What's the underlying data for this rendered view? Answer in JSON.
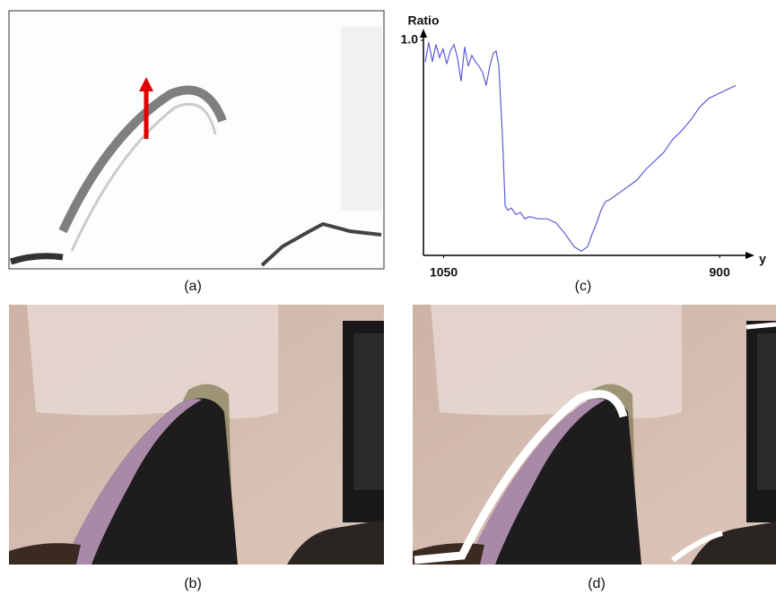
{
  "captions": {
    "a": "(a)",
    "b": "(b)",
    "c": "(c)",
    "d": "(d)"
  },
  "chart_data": {
    "type": "line",
    "ylabel": "Ratio",
    "xlabel": "y",
    "color": "#5b5bd6",
    "xlim": [
      1061,
      884
    ],
    "ylim": [
      0,
      1.0
    ],
    "xticks": [
      1050,
      900
    ],
    "yticks": [
      {
        "value": 1.0,
        "label": "1.0"
      }
    ],
    "x": [
      1060.0,
      1058.1,
      1056.1,
      1054.2,
      1052.2,
      1050.3,
      1048.3,
      1046.4,
      1044.4,
      1042.5,
      1040.5,
      1038.6,
      1036.6,
      1034.7,
      1032.7,
      1030.8,
      1028.8,
      1026.9,
      1024.9,
      1023.0,
      1021.5,
      1020.0,
      1018.1,
      1016.6,
      1015.1,
      1013.2,
      1010.8,
      1008.3,
      1005.9,
      1003.5,
      998.6,
      993.7,
      988.8,
      984.0,
      979.1,
      975.2,
      971.8,
      969.3,
      966.9,
      964.5,
      962.0,
      959.6,
      954.7,
      949.8,
      945.0,
      940.1,
      935.2,
      930.3,
      925.5,
      920.6,
      915.7,
      910.8,
      906.0,
      901.1,
      896.2,
      891.3
    ],
    "values": [
      0.9,
      0.99,
      0.9,
      0.98,
      0.92,
      0.96,
      0.89,
      0.95,
      0.98,
      0.92,
      0.81,
      0.97,
      0.88,
      0.93,
      0.9,
      0.88,
      0.85,
      0.79,
      0.88,
      0.94,
      0.95,
      0.88,
      0.56,
      0.23,
      0.21,
      0.22,
      0.19,
      0.2,
      0.17,
      0.18,
      0.17,
      0.17,
      0.15,
      0.1,
      0.04,
      0.02,
      0.04,
      0.1,
      0.15,
      0.21,
      0.25,
      0.26,
      0.29,
      0.32,
      0.35,
      0.4,
      0.44,
      0.48,
      0.54,
      0.58,
      0.63,
      0.69,
      0.73,
      0.75,
      0.77,
      0.79
    ]
  }
}
